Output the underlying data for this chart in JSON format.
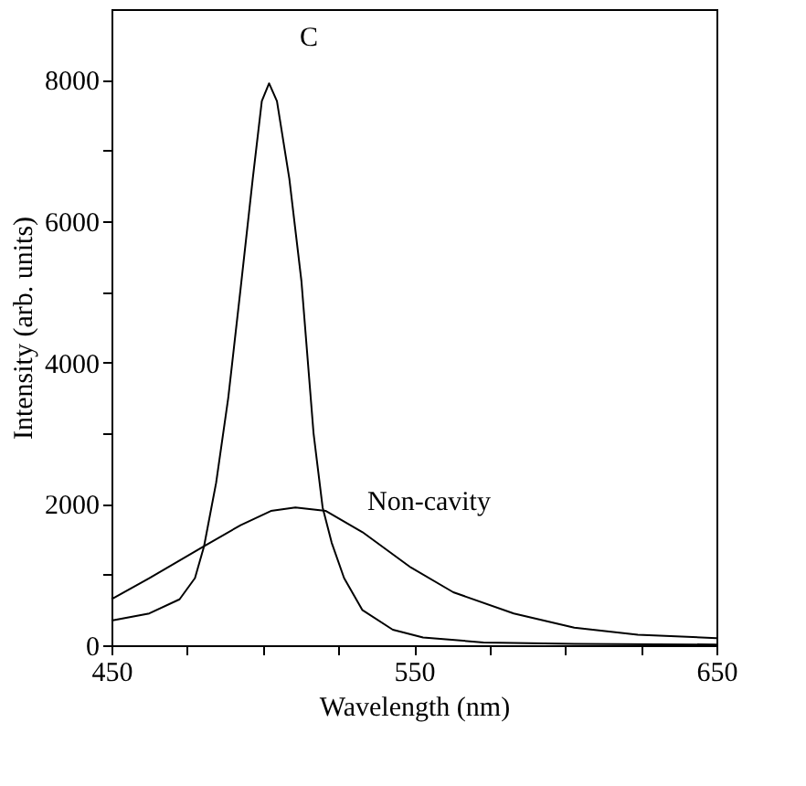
{
  "chart_data": {
    "type": "line",
    "xlabel": "Wavelength (nm)",
    "ylabel": "Intensity (arb. units)",
    "xlim": [
      450,
      650
    ],
    "xticks": [
      450,
      {
        "value": 475,
        "label": null
      },
      {
        "value": 500,
        "label": null
      },
      {
        "value": 525,
        "label": null
      },
      550,
      {
        "value": 575,
        "label": null
      },
      {
        "value": 600,
        "label": null
      },
      {
        "value": 625,
        "label": null
      },
      650
    ],
    "ylim": [
      0,
      9000
    ],
    "yticks": [
      0,
      {
        "value": 1000,
        "label": null
      },
      2000,
      {
        "value": 3000,
        "label": null
      },
      4000,
      {
        "value": 5000,
        "label": null
      },
      6000,
      {
        "value": 7000,
        "label": null
      },
      8000
    ],
    "grid": false,
    "marker": "none",
    "line_style": "solid",
    "series": [
      {
        "color": "#000000",
        "x": [
          450,
          462.5,
          472.5,
          477.6,
          480.6,
          484.6,
          488.6,
          492.7,
          496.7,
          499.7,
          502.1,
          504.7,
          508.8,
          512.8,
          516.8,
          519.8,
          522.8,
          526.9,
          532.9,
          543,
          553,
          573,
          603,
          650
        ],
        "values": [
          350,
          450,
          650,
          950,
          1400,
          2300,
          3500,
          5050,
          6600,
          7700,
          7950,
          7700,
          6600,
          5150,
          3000,
          1950,
          1450,
          950,
          500,
          220,
          110,
          40,
          20,
          10
        ]
      },
      {
        "color": "#000000",
        "x": [
          450,
          462.5,
          480.6,
          492.7,
          502.7,
          510.8,
          520.9,
          533,
          549,
          563,
          583,
          603,
          624,
          650
        ],
        "values": [
          650,
          950,
          1400,
          1700,
          1900,
          1950,
          1900,
          1600,
          1100,
          750,
          450,
          250,
          150,
          100
        ]
      }
    ],
    "annotations": [
      "C",
      "Non-cavity"
    ]
  }
}
